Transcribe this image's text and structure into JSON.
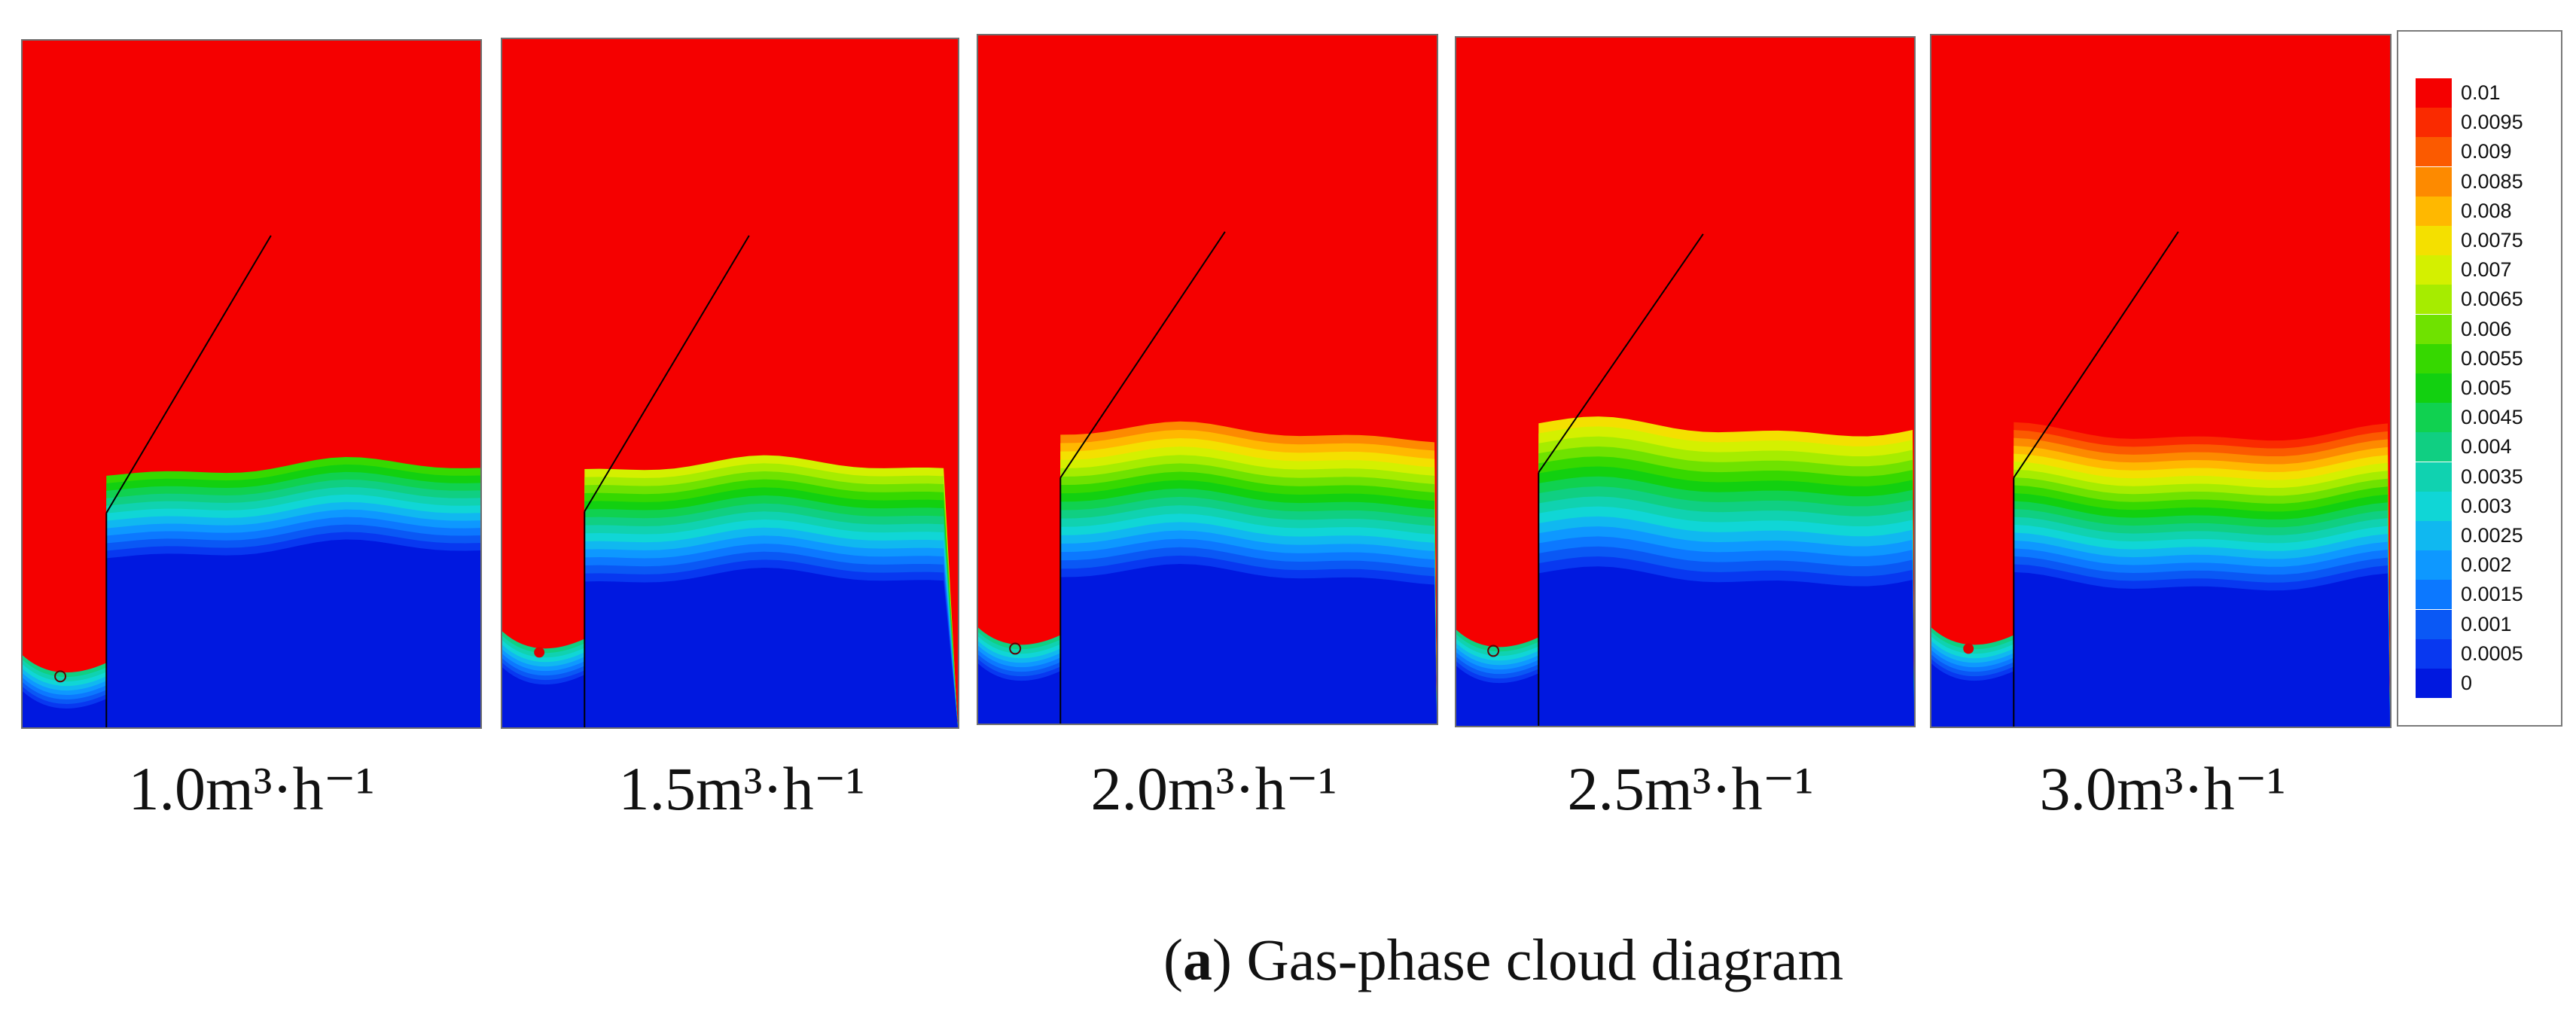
{
  "panels": [
    {
      "label": "1.0m³·h⁻¹"
    },
    {
      "label": "1.5m³·h⁻¹"
    },
    {
      "label": "2.0m³·h⁻¹"
    },
    {
      "label": "2.5m³·h⁻¹"
    },
    {
      "label": "3.0m³·h⁻¹"
    }
  ],
  "colorbar": {
    "ticks": [
      "0.01",
      "0.0095",
      "0.009",
      "0.0085",
      "0.008",
      "0.0075",
      "0.007",
      "0.0065",
      "0.006",
      "0.0055",
      "0.005",
      "0.0045",
      "0.004",
      "0.0035",
      "0.003",
      "0.0025",
      "0.002",
      "0.0015",
      "0.001",
      "0.0005",
      "0"
    ],
    "colors": [
      "#f50000",
      "#fa2a00",
      "#fb5a00",
      "#fd8a00",
      "#ffb800",
      "#f4e000",
      "#d4f000",
      "#a6ec00",
      "#6fe200",
      "#36d800",
      "#12d010",
      "#10d150",
      "#10cf82",
      "#10d2b0",
      "#10d6d6",
      "#10b8f0",
      "#0e98ff",
      "#0c78ff",
      "#0a58f5",
      "#0838f0",
      "#0018e0"
    ]
  },
  "caption": {
    "letter": "a",
    "text": " Gas-phase cloud diagram"
  }
}
